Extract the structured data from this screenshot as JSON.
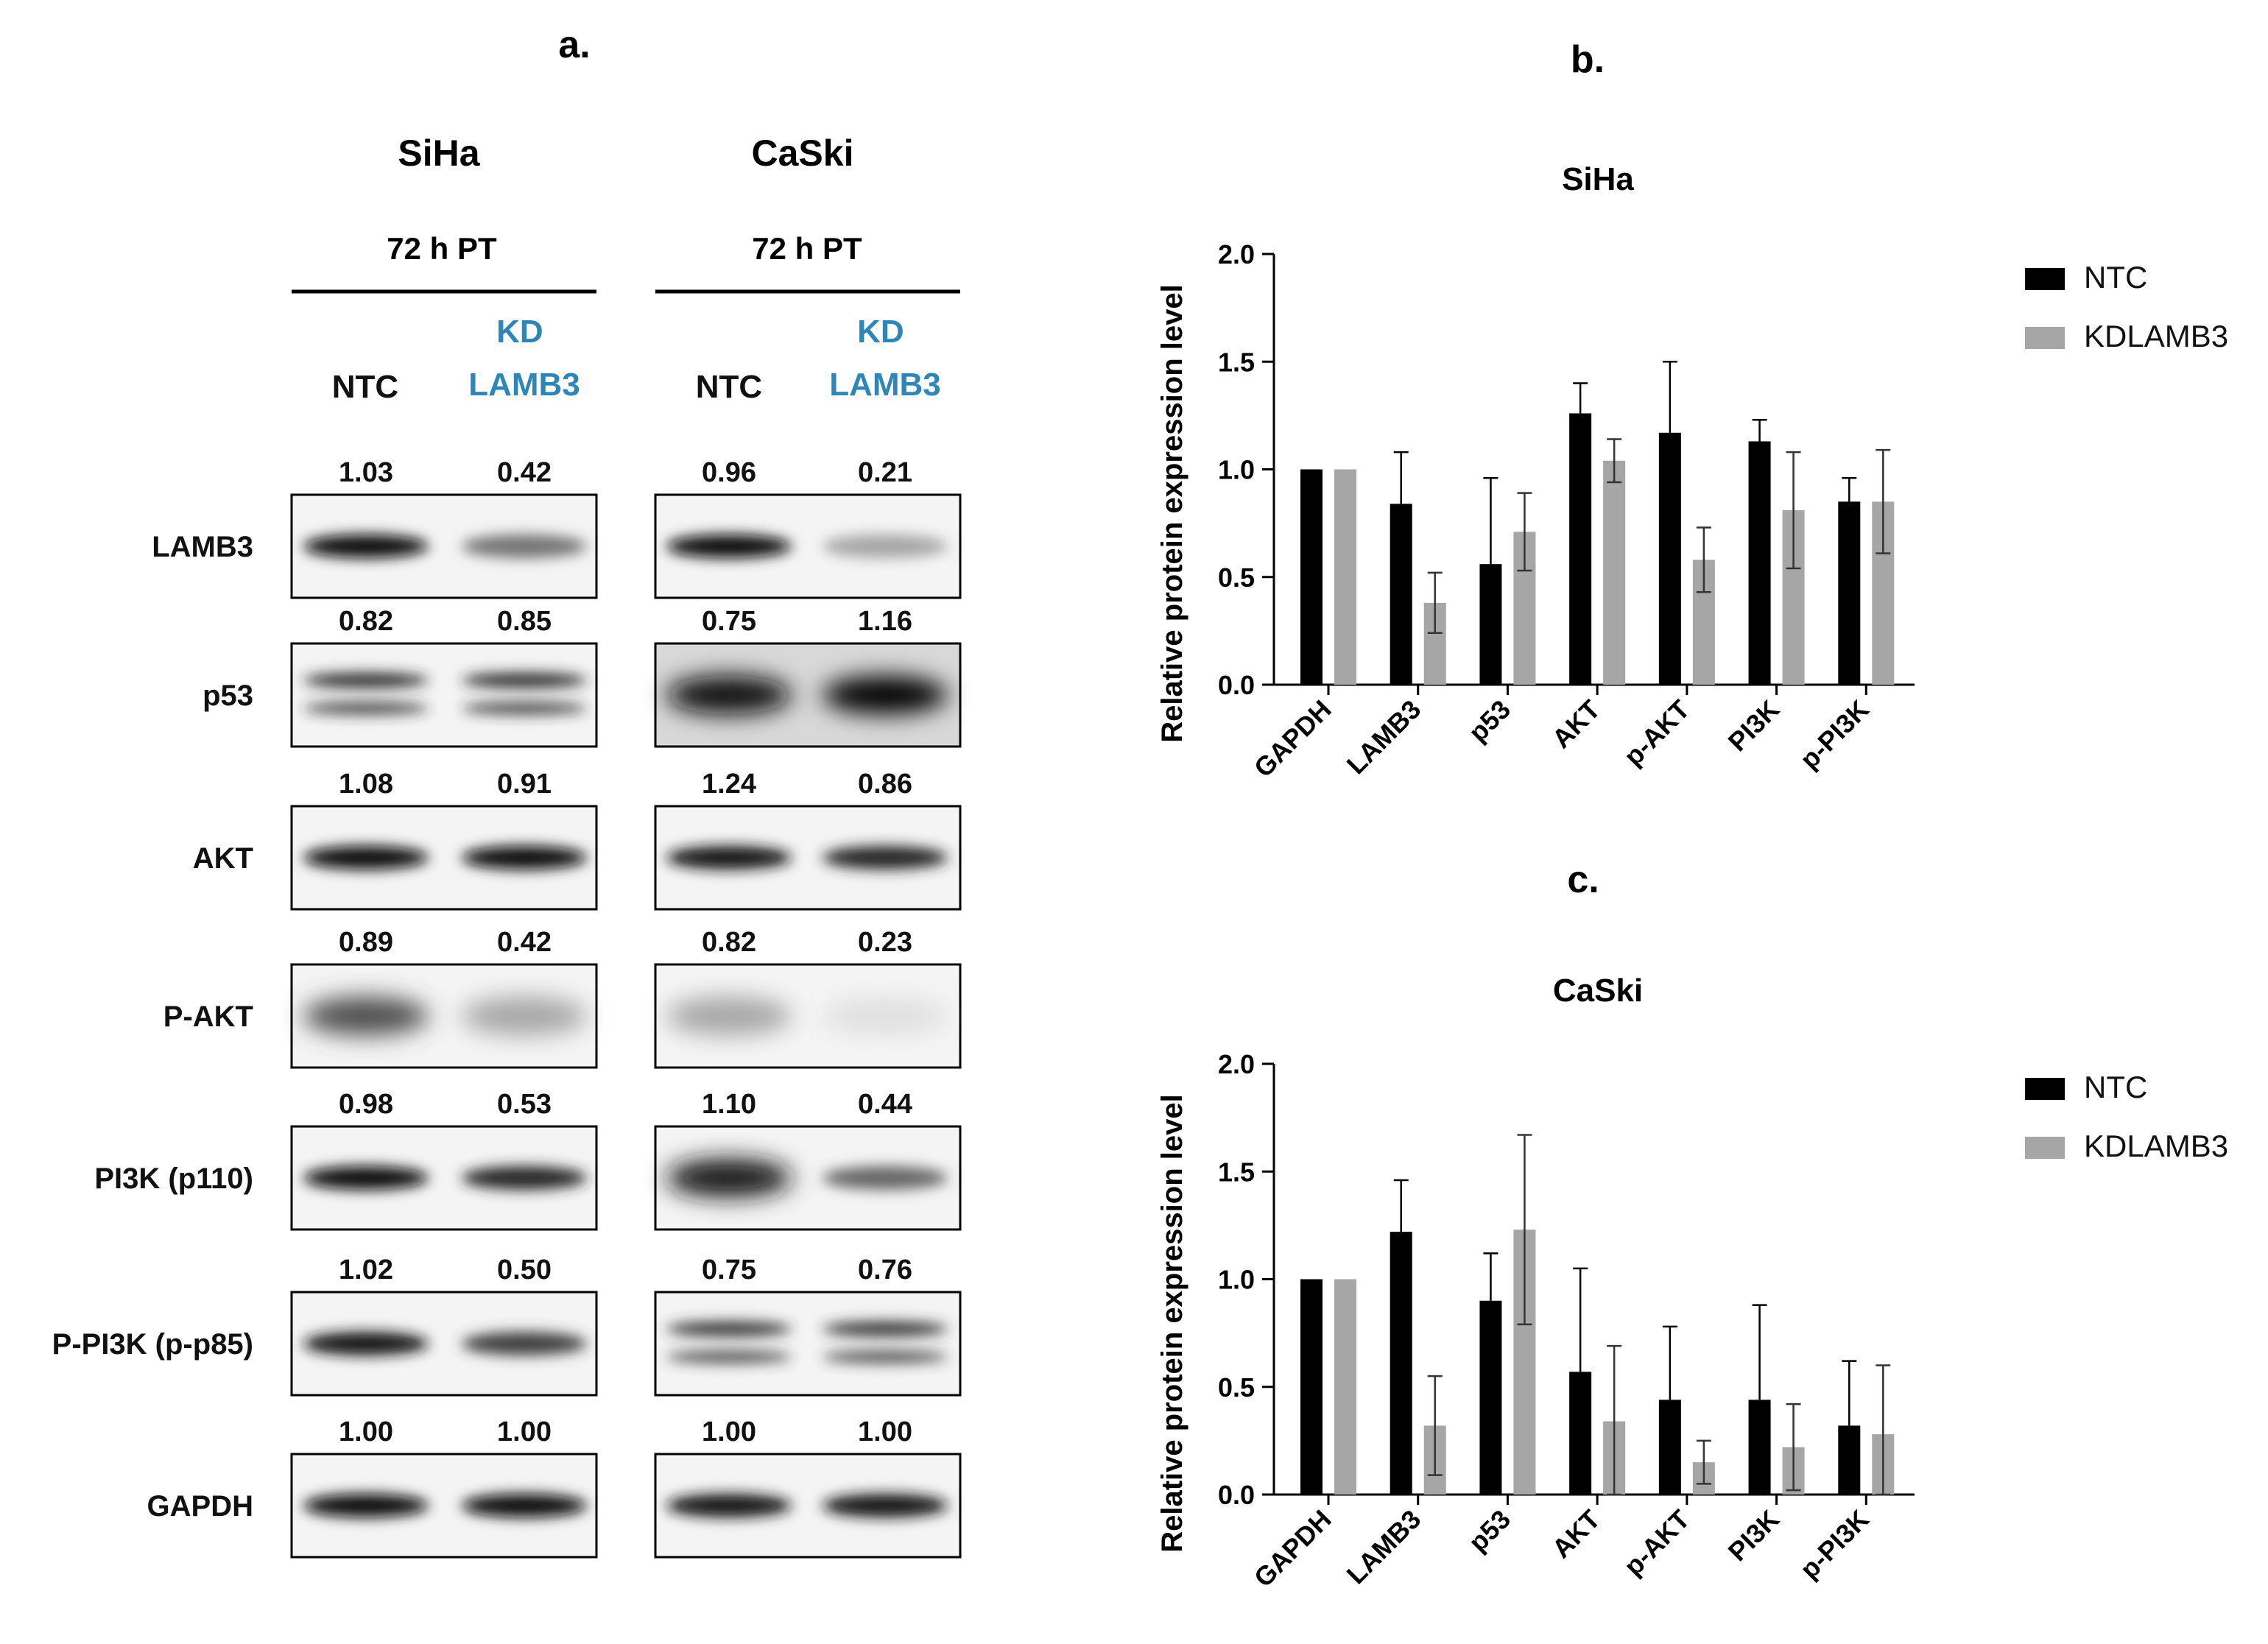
{
  "panel_a": {
    "letter": "a.",
    "columns": [
      {
        "cell_line": "SiHa",
        "time": "72 h PT",
        "lanes": [
          "NTC",
          "KD\nLAMB3"
        ]
      },
      {
        "cell_line": "CaSki",
        "time": "72 h PT",
        "lanes": [
          "NTC",
          "KD\nLAMB3"
        ]
      }
    ],
    "colors": {
      "ntc_label": "#111111",
      "kd_label": "#2e86b8"
    },
    "blots": [
      {
        "label": "LAMB3",
        "values": [
          [
            "1.03",
            "0.42"
          ],
          [
            "0.96",
            "0.21"
          ]
        ]
      },
      {
        "label": "p53",
        "values": [
          [
            "0.82",
            "0.85"
          ],
          [
            "0.75",
            "1.16"
          ]
        ]
      },
      {
        "label": "AKT",
        "values": [
          [
            "1.08",
            "0.91"
          ],
          [
            "1.24",
            "0.86"
          ]
        ]
      },
      {
        "label": "P-AKT",
        "values": [
          [
            "0.89",
            "0.42"
          ],
          [
            "0.82",
            "0.23"
          ]
        ]
      },
      {
        "label": "PI3K (p110)",
        "values": [
          [
            "0.98",
            "0.53"
          ],
          [
            "1.10",
            "0.44"
          ]
        ]
      },
      {
        "label": "P-PI3K (p-p85)",
        "values": [
          [
            "1.02",
            "0.50"
          ],
          [
            "0.75",
            "0.76"
          ]
        ]
      },
      {
        "label": "GAPDH",
        "values": [
          [
            "1.00",
            "1.00"
          ],
          [
            "1.00",
            "1.00"
          ]
        ]
      }
    ]
  },
  "chart_data": [
    {
      "panel_letter": "b.",
      "type": "bar",
      "title": "SiHa",
      "ylabel": "Relative protein expression level",
      "xlabel": "",
      "ylim": [
        0,
        2.0
      ],
      "yticks": [
        "0.0",
        "0.5",
        "1.0",
        "1.5",
        "2.0"
      ],
      "categories": [
        "GAPDH",
        "LAMB3",
        "p53",
        "AKT",
        "p-AKT",
        "PI3K",
        "p-PI3K"
      ],
      "series": [
        {
          "name": "NTC",
          "color": "#000000",
          "values": [
            1.0,
            0.84,
            0.56,
            1.26,
            1.17,
            1.13,
            0.85
          ],
          "errors": [
            0.0,
            0.24,
            0.4,
            0.14,
            0.33,
            0.1,
            0.11
          ]
        },
        {
          "name": "KDLAMB3",
          "color": "#a6a6a6",
          "values": [
            1.0,
            0.38,
            0.71,
            1.04,
            0.58,
            0.81,
            0.85
          ],
          "errors": [
            0.0,
            0.14,
            0.18,
            0.1,
            0.15,
            0.27,
            0.24
          ]
        }
      ],
      "legend": "top-right",
      "grid": false
    },
    {
      "panel_letter": "c.",
      "type": "bar",
      "title": "CaSki",
      "ylabel": "Relative protein expression level",
      "xlabel": "",
      "ylim": [
        0,
        2.0
      ],
      "yticks": [
        "0.0",
        "0.5",
        "1.0",
        "1.5",
        "2.0"
      ],
      "categories": [
        "GAPDH",
        "LAMB3",
        "p53",
        "AKT",
        "p-AKT",
        "PI3K",
        "p-PI3K"
      ],
      "series": [
        {
          "name": "NTC",
          "color": "#000000",
          "values": [
            1.0,
            1.22,
            0.9,
            0.57,
            0.44,
            0.44,
            0.32
          ],
          "errors": [
            0.0,
            0.24,
            0.22,
            0.48,
            0.34,
            0.44,
            0.3
          ]
        },
        {
          "name": "KDLAMB3",
          "color": "#a6a6a6",
          "values": [
            1.0,
            0.32,
            1.23,
            0.34,
            0.15,
            0.22,
            0.28
          ],
          "errors": [
            0.0,
            0.23,
            0.44,
            0.35,
            0.1,
            0.2,
            0.32
          ]
        }
      ],
      "legend": "top-right",
      "grid": false
    }
  ]
}
